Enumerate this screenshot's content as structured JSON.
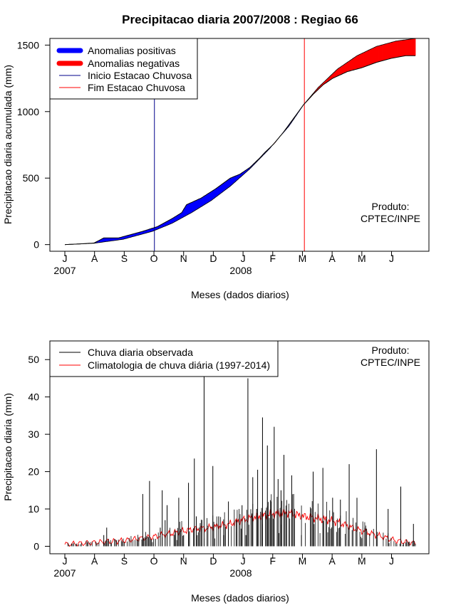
{
  "chart_data": [
    {
      "type": "area",
      "title": "Precipitacao diaria 2007/2008 : Regiao 66",
      "xlabel": "Meses (dados diarios)",
      "ylabel": "Precipitacao diaria acumulada (mm)",
      "ylim": [
        -50,
        1550
      ],
      "yticks": [
        0,
        500,
        1000,
        1500
      ],
      "month_ticks": [
        "J",
        "A",
        "S",
        "O",
        "N",
        "D",
        "J",
        "F",
        "M",
        "A",
        "M",
        "J"
      ],
      "year_labels": [
        "2007",
        "2008"
      ],
      "legend": {
        "placement": "top-left",
        "entries": [
          "Anomalias positivas",
          "Anomalias negativas",
          "Inicio Estacao Chuvosa",
          "Fim Estacao Chuvosa"
        ]
      },
      "annotation": [
        "Produto:",
        "CPTEC/INPE"
      ],
      "colors": {
        "positive": "#0000ff",
        "negative": "#ff0000",
        "start_line": "#00008b",
        "end_line": "#ff0000",
        "curve": "#000000"
      },
      "season_start_day": 92,
      "season_end_day": 246,
      "observed_accumulated": {
        "day": [
          0,
          15,
          30,
          40,
          55,
          65,
          80,
          95,
          110,
          120,
          125,
          140,
          155,
          170,
          180,
          190,
          200,
          205,
          215,
          225,
          235,
          245,
          255,
          265,
          275,
          290,
          305,
          320,
          335,
          350,
          360
        ],
        "value": [
          0,
          5,
          12,
          50,
          50,
          70,
          100,
          135,
          195,
          240,
          300,
          350,
          420,
          500,
          530,
          580,
          650,
          690,
          760,
          850,
          950,
          1050,
          1130,
          1200,
          1250,
          1300,
          1330,
          1370,
          1400,
          1420,
          1420
        ]
      },
      "climatology_accumulated": {
        "day": [
          0,
          30,
          60,
          90,
          110,
          130,
          150,
          170,
          190,
          210,
          230,
          245,
          260,
          280,
          300,
          320,
          340,
          360
        ],
        "value": [
          0,
          10,
          40,
          100,
          160,
          240,
          330,
          440,
          570,
          720,
          890,
          1050,
          1180,
          1320,
          1420,
          1490,
          1530,
          1550
        ]
      }
    },
    {
      "type": "line",
      "xlabel": "Meses (dados diarios)",
      "ylabel": "Precipitacao diaria (mm)",
      "ylim": [
        -2,
        55
      ],
      "yticks": [
        0,
        10,
        20,
        30,
        40,
        50
      ],
      "month_ticks": [
        "J",
        "A",
        "S",
        "O",
        "N",
        "D",
        "J",
        "F",
        "M",
        "A",
        "M",
        "J"
      ],
      "year_labels": [
        "2007",
        "2008"
      ],
      "legend": {
        "placement": "top-left",
        "entries": [
          "Chuva diaria observada",
          "Climatologia de chuva diária (1997-2014)"
        ]
      },
      "annotation": [
        "Produto:",
        "CPTEC/INPE"
      ],
      "colors": {
        "observed": "#000000",
        "climatology": "#ff0000"
      },
      "observed_peaks": {
        "day": [
          40,
          43,
          80,
          87,
          93,
          98,
          100,
          103,
          105,
          113,
          117,
          122,
          127,
          128,
          133,
          135,
          143,
          152,
          158,
          163,
          168,
          176,
          182,
          186,
          188,
          193,
          197,
          198,
          203,
          208,
          212,
          215,
          219,
          222,
          225,
          233,
          243,
          255,
          265,
          275,
          283,
          292,
          300,
          308,
          320,
          332,
          345,
          358
        ],
        "value": [
          3,
          5,
          14,
          17.5,
          2,
          5,
          15,
          7,
          11,
          3,
          13,
          3,
          17,
          4,
          23.5,
          8,
          46,
          21.5,
          8,
          3,
          12,
          7,
          11,
          3,
          45,
          18.5,
          10,
          20.5,
          34.5,
          27,
          12,
          32,
          18,
          15,
          24.5,
          19,
          3,
          20,
          21,
          13,
          12.5,
          22,
          13,
          5,
          26,
          10,
          16,
          6
        ]
      },
      "climatology": {
        "day": [
          0,
          30,
          60,
          90,
          110,
          130,
          150,
          170,
          190,
          210,
          230,
          245,
          260,
          280,
          300,
          320,
          340,
          360
        ],
        "value": [
          0.5,
          1,
          1.5,
          2.5,
          3.5,
          4.5,
          5,
          6,
          7.5,
          8.5,
          9,
          8,
          7.5,
          6.5,
          4.5,
          3,
          1.5,
          0.8
        ]
      }
    }
  ]
}
